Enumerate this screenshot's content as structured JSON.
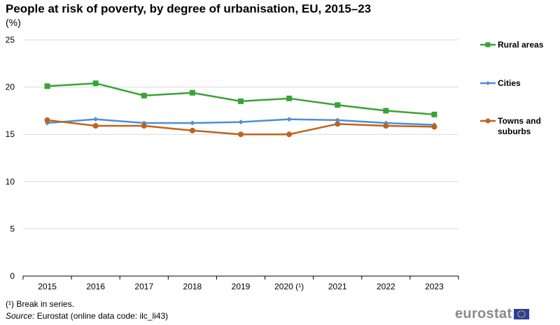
{
  "title": "People at risk of poverty, by degree of urbanisation, EU, 2015–23",
  "unit": "(%)",
  "footnote": "(¹) Break in series.",
  "source_label": "Source:",
  "source_text": " Eurostat (online data code: ilc_li43)",
  "brand": "eurostat",
  "chart_data": {
    "type": "line",
    "categories": [
      "2015",
      "2016",
      "2017",
      "2018",
      "2019",
      "2020 (¹)",
      "2021",
      "2022",
      "2023"
    ],
    "ylim": [
      0,
      25
    ],
    "yticks": [
      0,
      5,
      10,
      15,
      20,
      25
    ],
    "grid": true,
    "legend_position": "right",
    "series": [
      {
        "name": "Rural areas",
        "color": "#3aa335",
        "marker": "square",
        "values": [
          20.1,
          20.4,
          19.1,
          19.4,
          18.5,
          18.8,
          18.1,
          17.5,
          17.1
        ]
      },
      {
        "name": "Cities",
        "color": "#4a90d9",
        "marker": "diamond",
        "values": [
          16.2,
          16.6,
          16.2,
          16.2,
          16.3,
          16.6,
          16.5,
          16.2,
          16.0
        ]
      },
      {
        "name": "Towns and suburbs",
        "color": "#c0631a",
        "marker": "circle",
        "values": [
          16.5,
          15.9,
          15.9,
          15.4,
          15.0,
          15.0,
          16.1,
          15.9,
          15.8
        ]
      }
    ]
  }
}
